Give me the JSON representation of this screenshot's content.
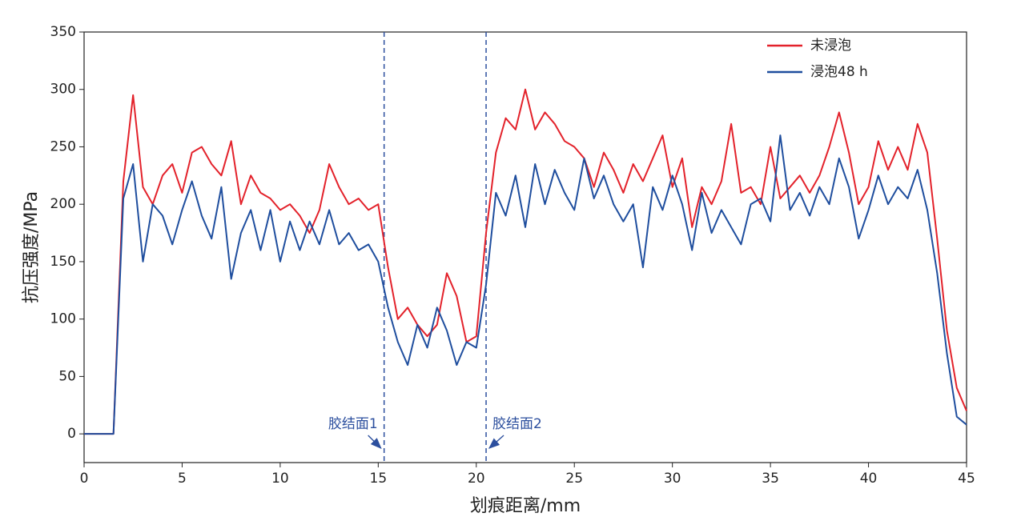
{
  "chart_data": {
    "type": "line",
    "xlabel": "划痕距离/mm",
    "ylabel": "抗压强度/MPa",
    "x": [
      0,
      0.5,
      1,
      1.5,
      2,
      2.5,
      3,
      3.5,
      4,
      4.5,
      5,
      5.5,
      6,
      6.5,
      7,
      7.5,
      8,
      8.5,
      9,
      9.5,
      10,
      10.5,
      11,
      11.5,
      12,
      12.5,
      13,
      13.5,
      14,
      14.5,
      15,
      15.5,
      16,
      16.5,
      17,
      17.5,
      18,
      18.5,
      19,
      19.5,
      20,
      20.5,
      21,
      21.5,
      22,
      22.5,
      23,
      23.5,
      24,
      24.5,
      25,
      25.5,
      26,
      26.5,
      27,
      27.5,
      28,
      28.5,
      29,
      29.5,
      30,
      30.5,
      31,
      31.5,
      32,
      32.5,
      33,
      33.5,
      34,
      34.5,
      35,
      35.5,
      36,
      36.5,
      37,
      37.5,
      38,
      38.5,
      39,
      39.5,
      40,
      40.5,
      41,
      41.5,
      42,
      42.5,
      43,
      43.5,
      44,
      44.5,
      45
    ],
    "series": [
      {
        "name": "未浸泡",
        "color": "#e3222b",
        "values": [
          0,
          0,
          0,
          0,
          220,
          295,
          215,
          200,
          225,
          235,
          210,
          245,
          250,
          235,
          225,
          255,
          200,
          225,
          210,
          205,
          195,
          200,
          190,
          175,
          195,
          235,
          215,
          200,
          205,
          195,
          200,
          145,
          100,
          110,
          95,
          85,
          95,
          140,
          120,
          80,
          85,
          175,
          245,
          275,
          265,
          300,
          265,
          280,
          270,
          255,
          250,
          240,
          215,
          245,
          230,
          210,
          235,
          220,
          240,
          260,
          215,
          240,
          180,
          215,
          200,
          220,
          270,
          210,
          215,
          200,
          250,
          205,
          215,
          225,
          210,
          225,
          250,
          280,
          245,
          200,
          215,
          255,
          230,
          250,
          230,
          270,
          245,
          170,
          90,
          40,
          20
        ]
      },
      {
        "name": "浸泡48 h",
        "color": "#1f4e9e",
        "values": [
          0,
          0,
          0,
          0,
          205,
          235,
          150,
          200,
          190,
          165,
          195,
          220,
          190,
          170,
          215,
          135,
          175,
          195,
          160,
          195,
          150,
          185,
          160,
          185,
          165,
          195,
          165,
          175,
          160,
          165,
          150,
          110,
          80,
          60,
          95,
          75,
          110,
          90,
          60,
          80,
          75,
          130,
          210,
          190,
          225,
          180,
          235,
          200,
          230,
          210,
          195,
          240,
          205,
          225,
          200,
          185,
          200,
          145,
          215,
          195,
          225,
          200,
          160,
          210,
          175,
          195,
          180,
          165,
          200,
          205,
          185,
          260,
          195,
          210,
          190,
          215,
          200,
          240,
          215,
          170,
          195,
          225,
          200,
          215,
          205,
          230,
          195,
          140,
          70,
          15,
          8
        ]
      }
    ],
    "xlim": [
      0,
      45
    ],
    "ylim": [
      -25,
      350
    ],
    "xticks": [
      0,
      5,
      10,
      15,
      20,
      25,
      30,
      35,
      40,
      45
    ],
    "yticks": [
      0,
      50,
      100,
      150,
      200,
      250,
      300,
      350
    ],
    "vlines": [
      15.3,
      20.5
    ],
    "annotations": [
      "胶结面1",
      "胶结面2"
    ],
    "legend": "upper right"
  }
}
